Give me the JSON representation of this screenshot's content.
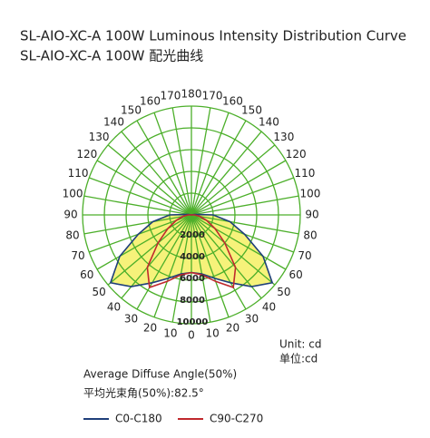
{
  "chart_data": {
    "type": "polar",
    "title": "SL-AIO-XC-A 100W Luminous Intensity Distribution Curve",
    "subtitle": "SL-AIO-XC-A 100W 配光曲线",
    "x": [
      0,
      10,
      20,
      30,
      40,
      50,
      60,
      70,
      80,
      90,
      100,
      110,
      120,
      130,
      140,
      150,
      160,
      170,
      180
    ],
    "rlim": [
      0,
      10000
    ],
    "rticks": [
      2000,
      4000,
      6000,
      8000,
      10000
    ],
    "grid": true,
    "grid_color": "#4caf2a",
    "series": [
      {
        "name": "C0-C180",
        "color": "#1f3f7a",
        "fill": "#f6f27a",
        "values": [
          5300,
          5500,
          6200,
          7200,
          8600,
          9700,
          7600,
          5200,
          3600,
          2000,
          300,
          0,
          0,
          0,
          0,
          0,
          0,
          0,
          0
        ]
      },
      {
        "name": "C90-C270",
        "color": "#c0282d",
        "values": [
          5300,
          5600,
          6500,
          7700,
          6300,
          4000,
          2500,
          1500,
          800,
          300,
          0,
          0,
          0,
          0,
          0,
          0,
          0,
          0,
          0
        ]
      }
    ],
    "unit": "Unit: cd",
    "unit_cn": "单位:cd",
    "notes": [
      "Average Diffuse Angle(50%)",
      "平均光束角(50%):82.5°"
    ]
  }
}
